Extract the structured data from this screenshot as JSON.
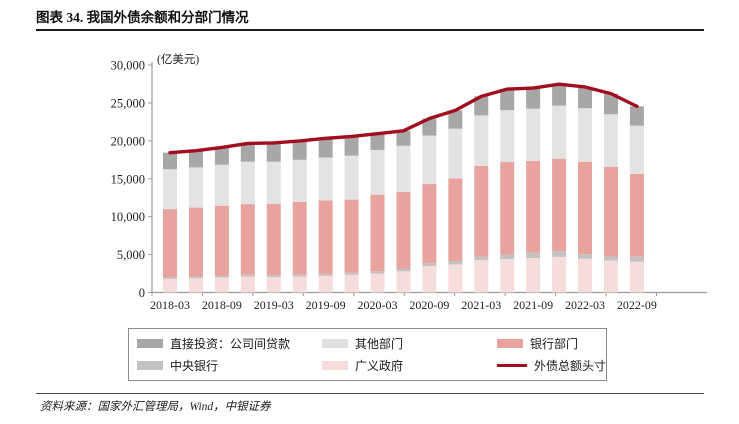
{
  "header": {
    "title": "图表 34. 我国外债余额和分部门情况"
  },
  "chart_data": {
    "type": "bar",
    "subtype": "stacked-bars-with-total-line",
    "title": "我国外债余额和分部门情况",
    "unit_label": "(亿美元)",
    "grid": false,
    "legend_position": "bottom",
    "ylim": [
      0,
      30000
    ],
    "y_tick_step": 5000,
    "categories": [
      "2018-03",
      "2018-06",
      "2018-09",
      "2018-12",
      "2019-03",
      "2019-06",
      "2019-09",
      "2019-12",
      "2020-03",
      "2020-06",
      "2020-09",
      "2020-12",
      "2021-03",
      "2021-06",
      "2021-09",
      "2021-12",
      "2022-03",
      "2022-06",
      "2022-09"
    ],
    "x_tick_labels": [
      "2018-03",
      "2018-09",
      "2019-03",
      "2019-09",
      "2020-03",
      "2020-09",
      "2021-03",
      "2021-09",
      "2022-03",
      "2022-09"
    ],
    "series": [
      {
        "name": "广义政府",
        "color": "#F6DCDB",
        "values": [
          1800,
          1900,
          2000,
          2100,
          2050,
          2100,
          2200,
          2350,
          2500,
          2800,
          3500,
          3700,
          4250,
          4400,
          4550,
          4700,
          4450,
          4200,
          4050
        ]
      },
      {
        "name": "中央银行",
        "color": "#C2C2C2",
        "values": [
          200,
          200,
          200,
          250,
          250,
          250,
          250,
          250,
          300,
          300,
          350,
          450,
          450,
          600,
          700,
          750,
          600,
          550,
          650
        ]
      },
      {
        "name": "银行部门",
        "color": "#E8A39F",
        "values": [
          9000,
          9100,
          9250,
          9300,
          9400,
          9600,
          9700,
          9650,
          10100,
          10150,
          10450,
          10900,
          12000,
          12200,
          12100,
          12200,
          12200,
          11800,
          10950
        ]
      },
      {
        "name": "其他部门",
        "color": "#E3E3E3",
        "values": [
          5250,
          5300,
          5400,
          5600,
          5550,
          5550,
          5650,
          5800,
          5900,
          6100,
          6400,
          6550,
          6650,
          6850,
          6900,
          7000,
          7050,
          6950,
          6350
        ]
      },
      {
        "name": "直接投资：公司间贷款",
        "color": "#A7A7A7",
        "values": [
          2185,
          2205,
          2282,
          2402,
          2467,
          2480,
          2525,
          2523,
          2146,
          1974,
          2243,
          2411,
          2519,
          2771,
          2715,
          2816,
          2802,
          2729,
          2549
        ]
      }
    ],
    "line_series": {
      "name": "外债总额头寸",
      "color": "#A10E1E",
      "values": [
        18435,
        18705,
        19132,
        19652,
        19717,
        19980,
        20325,
        20573,
        20946,
        21324,
        22943,
        24011,
        25869,
        26821,
        26965,
        27466,
        27102,
        26229,
        24549
      ]
    },
    "axis_color": "#9b9b9b"
  },
  "legend": {
    "items": [
      {
        "label": "直接投资：公司间贷款",
        "swatch": "box",
        "color": "#A7A7A7"
      },
      {
        "label": "其他部门",
        "swatch": "box",
        "color": "#E0E0E0"
      },
      {
        "label": "银行部门",
        "swatch": "box",
        "color": "#E8A39F"
      },
      {
        "label": "中央银行",
        "swatch": "box",
        "color": "#C2C2C2"
      },
      {
        "label": "广义政府",
        "swatch": "box",
        "color": "#F6DCDB"
      },
      {
        "label": "外债总额头寸",
        "swatch": "line",
        "color": "#A10E1E"
      }
    ]
  },
  "footer": {
    "source": "资料来源：国家外汇管理局，Wind，中银证券"
  }
}
